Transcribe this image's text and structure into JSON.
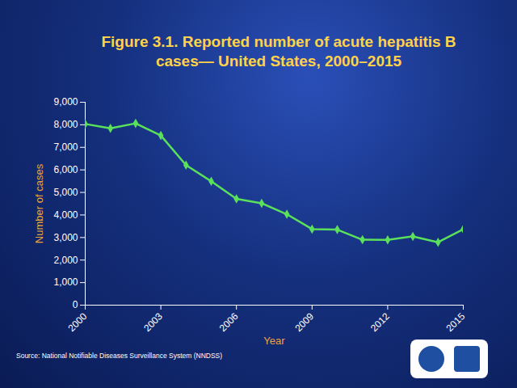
{
  "chart_data": {
    "type": "line",
    "title": "Figure 3.1. Reported number of acute hepatitis B cases— United States, 2000–2015",
    "x_label": "Year",
    "y_label": "Number of cases",
    "annotations": [
      "Source: National Notifiable Diseases Surveillance System (NNDSS)"
    ],
    "x": [
      2000,
      2001,
      2002,
      2003,
      2004,
      2005,
      2006,
      2007,
      2008,
      2009,
      2010,
      2011,
      2012,
      2013,
      2014,
      2015
    ],
    "values": [
      8036,
      7843,
      8064,
      7526,
      6212,
      5494,
      4713,
      4519,
      4033,
      3374,
      3350,
      2903,
      2895,
      3050,
      2791,
      3370
    ],
    "color": "#5be05b",
    "marker": "diamond",
    "xlim": [
      2000,
      2015
    ],
    "xticks": [
      2000,
      2003,
      2006,
      2009,
      2012,
      2015
    ],
    "ylim": [
      0,
      9000
    ],
    "yticks": [
      0,
      {
        "value": 1000,
        "label": "1,000"
      },
      {
        "value": 2000,
        "label": "2,000"
      },
      {
        "value": 3000,
        "label": "3,000"
      },
      {
        "value": 4000,
        "label": "4,000"
      },
      {
        "value": 5000,
        "label": "5,000"
      },
      {
        "value": 6000,
        "label": "6,000"
      },
      {
        "value": 7000,
        "label": "7,000"
      },
      {
        "value": 8000,
        "label": "8,000"
      },
      {
        "value": 9000,
        "label": "9,000"
      }
    ],
    "grid": false
  }
}
